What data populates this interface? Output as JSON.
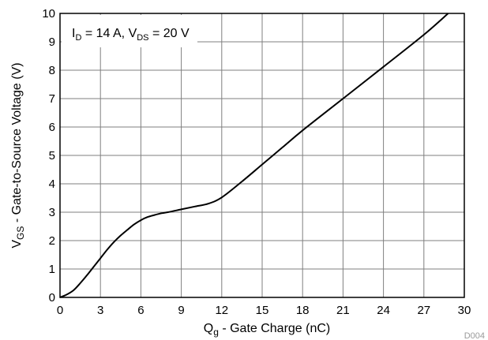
{
  "chart_data": {
    "type": "line",
    "title": "",
    "xlabel": {
      "main": "Q",
      "sub": "g",
      "rest": " - Gate Charge (nC)"
    },
    "ylabel": {
      "main": "V",
      "sub": "GS",
      "rest": " - Gate-to-Source Voltage (V)"
    },
    "xlim": [
      0,
      30
    ],
    "ylim": [
      0,
      10
    ],
    "xticks": [
      0,
      3,
      6,
      9,
      12,
      15,
      18,
      21,
      24,
      27,
      30
    ],
    "yticks": [
      0,
      1,
      2,
      3,
      4,
      5,
      6,
      7,
      8,
      9,
      10
    ],
    "grid": true,
    "legend": "none",
    "annotation": {
      "parts": [
        {
          "text": "I",
          "sub": false
        },
        {
          "text": "D",
          "sub": true
        },
        {
          "text": " = 14 A, V",
          "sub": false
        },
        {
          "text": "DS",
          "sub": true
        },
        {
          "text": " = 20 V",
          "sub": false
        }
      ]
    },
    "doc_id": "D004",
    "line_color": "#000000",
    "series": [
      {
        "x": [
          0,
          0.5,
          1.0,
          1.5,
          2.0,
          2.5,
          3.0,
          3.5,
          4.0,
          4.5,
          5.0,
          5.5,
          6.0,
          6.5,
          7.0,
          7.5,
          8.0,
          9.0,
          10.0,
          11.0,
          12.0,
          13.5,
          15.0,
          16.5,
          18.0,
          21.0,
          24.0,
          27.0,
          28.8
        ],
        "y": [
          0,
          0.1,
          0.25,
          0.5,
          0.78,
          1.08,
          1.38,
          1.68,
          1.95,
          2.18,
          2.38,
          2.57,
          2.72,
          2.83,
          2.9,
          2.96,
          3.0,
          3.1,
          3.2,
          3.3,
          3.52,
          4.08,
          4.68,
          5.28,
          5.88,
          7.0,
          8.12,
          9.25,
          10.0
        ]
      }
    ]
  }
}
